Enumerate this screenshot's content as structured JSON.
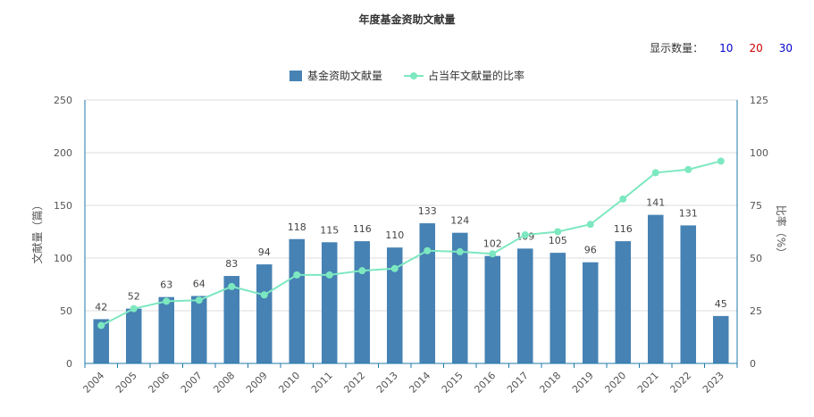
{
  "title": "年度基金资助文献量",
  "count_control": {
    "label": "显示数量：",
    "options": [
      "10",
      "20",
      "30"
    ],
    "option_colors": [
      "#0000cc",
      "#cc0000",
      "#0000cc"
    ]
  },
  "colors": {
    "bar": "#4682b4",
    "line": "#7de8c0",
    "axis": "#1f78a8",
    "grid": "#dcdcdc"
  },
  "chart_data": {
    "type": "bar",
    "categories": [
      "2004",
      "2005",
      "2006",
      "2007",
      "2008",
      "2009",
      "2010",
      "2011",
      "2012",
      "2013",
      "2014",
      "2015",
      "2016",
      "2017",
      "2018",
      "2019",
      "2020",
      "2021",
      "2022",
      "2023"
    ],
    "series": [
      {
        "name": "基金资助文献量",
        "type": "bar",
        "axis": "left",
        "values": [
          42,
          52,
          63,
          64,
          83,
          94,
          118,
          115,
          116,
          110,
          133,
          124,
          102,
          109,
          105,
          96,
          116,
          141,
          131,
          45
        ]
      },
      {
        "name": "占当年文献量的比率",
        "type": "line",
        "axis": "right",
        "values": [
          18,
          26,
          29.5,
          30,
          36.5,
          32.5,
          42,
          42,
          44,
          45,
          53.5,
          53,
          52,
          61,
          62.5,
          66,
          78,
          90.5,
          92,
          96
        ]
      }
    ],
    "ylabel": "文献量（篇）",
    "y2label": "比率（%）",
    "ylim": [
      0,
      250
    ],
    "yticks": [
      "0",
      "50",
      "100",
      "150",
      "200",
      "250"
    ],
    "y2lim": [
      0,
      125
    ],
    "y2ticks": [
      "0",
      "25",
      "50",
      "75",
      "100",
      "125"
    ],
    "grid": true,
    "legend": "top-center"
  }
}
